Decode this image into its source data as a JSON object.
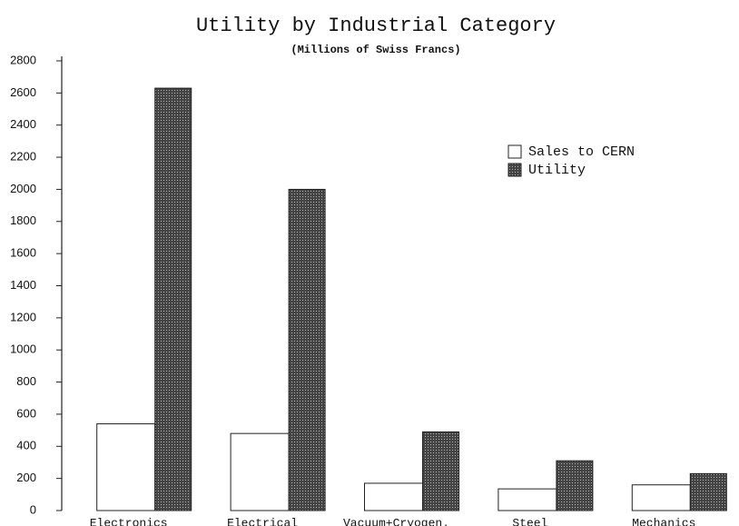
{
  "chart_data": {
    "type": "bar",
    "title": "Utility by Industrial Category",
    "subtitle": "(Millions of Swiss Francs)",
    "categories": [
      "Electronics",
      "Electrical",
      "Vacuum+Cryogen.",
      "Steel",
      "Mechanics"
    ],
    "series": [
      {
        "name": "Sales to CERN",
        "color": "#ffffff",
        "values": [
          540,
          480,
          170,
          135,
          160
        ]
      },
      {
        "name": "Utility",
        "color": "#444444",
        "values": [
          2630,
          2000,
          490,
          310,
          230
        ]
      }
    ],
    "ylim": [
      0,
      2800
    ],
    "yticks": [
      0,
      200,
      400,
      600,
      800,
      1000,
      1200,
      1400,
      1600,
      1800,
      2000,
      2200,
      2400,
      2600,
      2800
    ],
    "legend": "upper right"
  }
}
